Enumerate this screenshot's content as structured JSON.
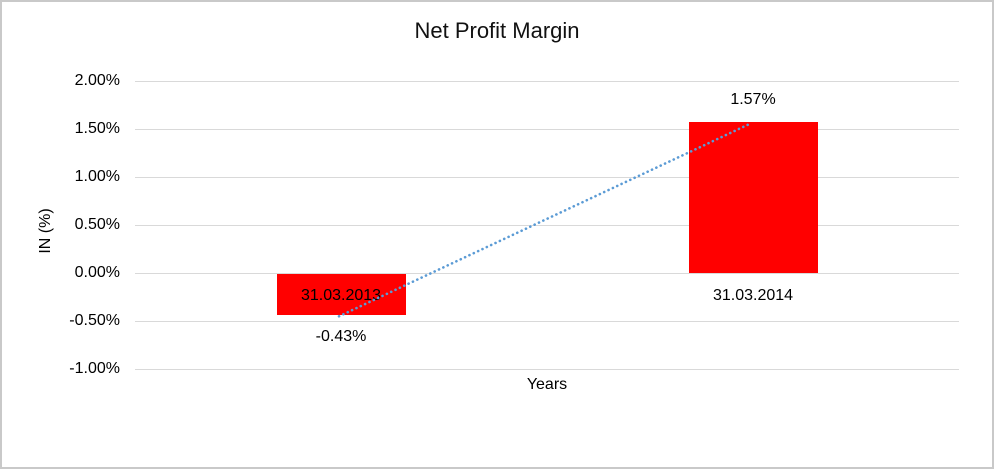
{
  "chart_data": {
    "type": "bar",
    "title": "Net Profit Margin",
    "xlabel": "Years",
    "ylabel": "IN (%)",
    "categories": [
      "31.03.2013",
      "31.03.2014"
    ],
    "values": [
      -0.43,
      1.57
    ],
    "value_labels": [
      "-0.43%",
      "1.57%"
    ],
    "yticks": [
      {
        "value": 2.0,
        "label": "2.00%"
      },
      {
        "value": 1.5,
        "label": "1.50%"
      },
      {
        "value": 1.0,
        "label": "1.00%"
      },
      {
        "value": 0.5,
        "label": "0.50%"
      },
      {
        "value": 0.0,
        "label": "0.00%"
      },
      {
        "value": -0.5,
        "label": "-0.50%"
      },
      {
        "value": -1.0,
        "label": "-1.00%"
      }
    ],
    "ylim": [
      -1.0,
      2.0
    ],
    "grid": true,
    "legend": false,
    "bar_color": "#ff0000",
    "gridline_color": "#d9d9d9",
    "trendline": {
      "style": "dotted",
      "color": "#5b9bd5",
      "from_category": "31.03.2013",
      "to_category": "31.03.2014"
    }
  }
}
